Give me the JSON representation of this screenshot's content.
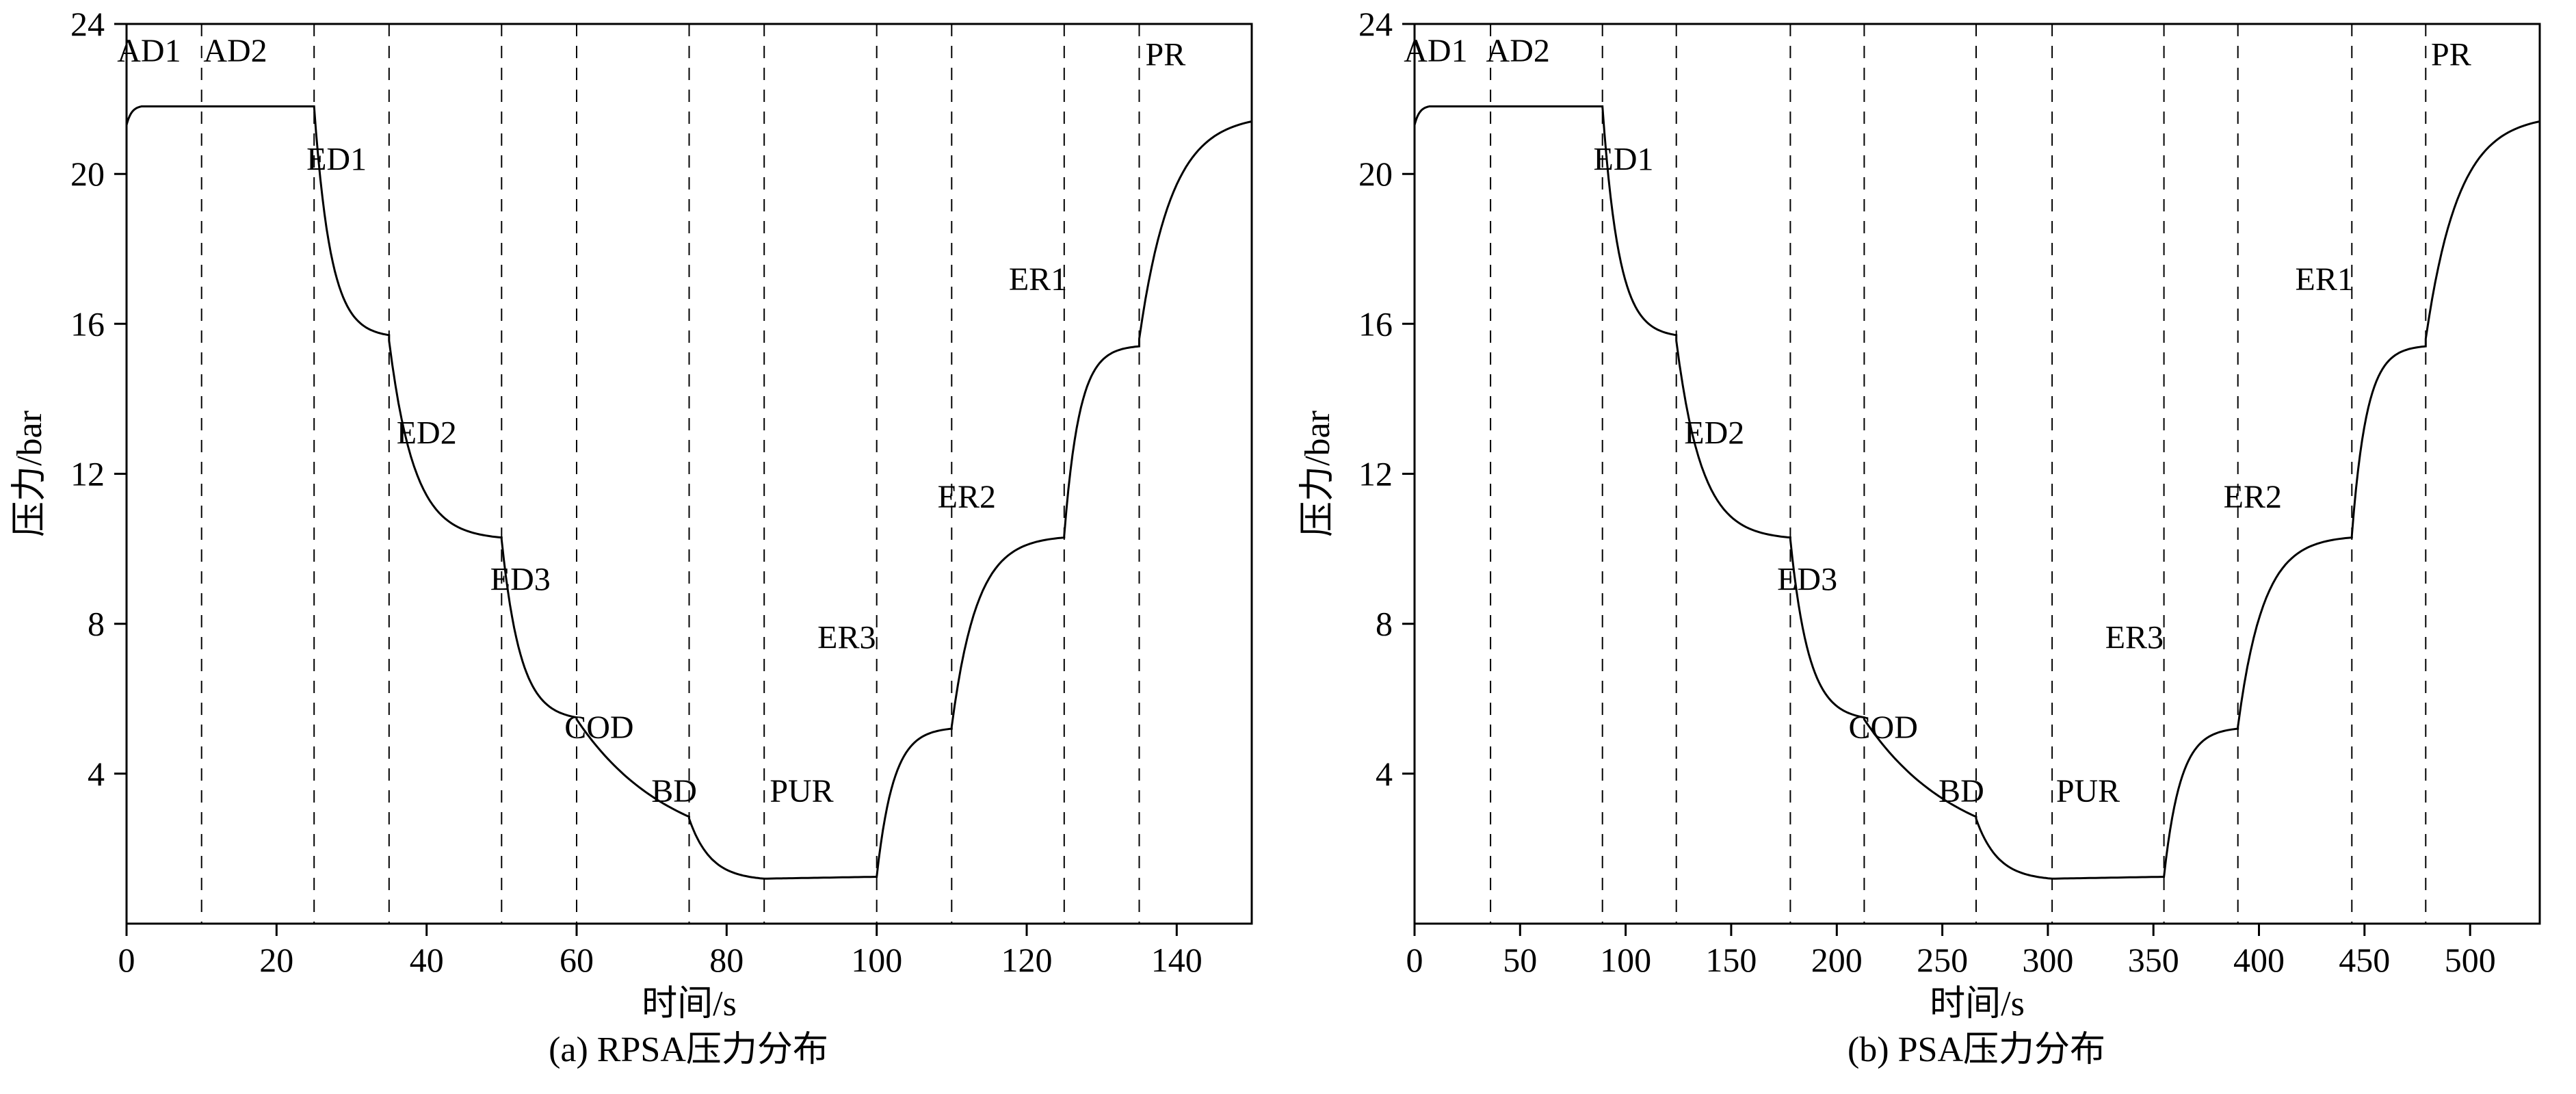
{
  "figure": {
    "background": "#ffffff",
    "line_color": "#000000"
  },
  "chart_data": [
    {
      "type": "line",
      "title": "(a) RPSA压力分布",
      "xlabel": "时间/s",
      "ylabel": "压力/bar",
      "xlim": [
        0,
        150
      ],
      "ylim": [
        0,
        24
      ],
      "xticks": [
        0,
        20,
        40,
        60,
        80,
        100,
        120,
        140
      ],
      "yticks": [
        4,
        8,
        12,
        16,
        20,
        24
      ],
      "line_color": "#000000",
      "grid": false,
      "phase_lines": [
        10,
        25,
        35,
        50,
        60,
        75,
        85,
        100,
        110,
        125,
        135
      ],
      "phase_labels": [
        {
          "text": "AD1",
          "x": 3,
          "y": 23.0
        },
        {
          "text": "AD2",
          "x": 14.5,
          "y": 23.0
        },
        {
          "text": "ED1",
          "x": 28,
          "y": 20.1
        },
        {
          "text": "ED2",
          "x": 40,
          "y": 12.8
        },
        {
          "text": "ED3",
          "x": 52.5,
          "y": 8.9
        },
        {
          "text": "COD",
          "x": 63,
          "y": 4.95
        },
        {
          "text": "BD",
          "x": 73,
          "y": 3.25
        },
        {
          "text": "PUR",
          "x": 90,
          "y": 3.25
        },
        {
          "text": "ER3",
          "x": 96,
          "y": 7.35
        },
        {
          "text": "ER2",
          "x": 112,
          "y": 11.1
        },
        {
          "text": "ER1",
          "x": 121.5,
          "y": 16.9
        },
        {
          "text": "PR",
          "x": 138.5,
          "y": 22.9
        }
      ],
      "segments": [
        {
          "t0": 0,
          "t1": 2,
          "p0": 21.3,
          "p1": 21.8,
          "k": 3
        },
        {
          "t0": 2,
          "t1": 25,
          "p0": 21.8,
          "p1": 21.8,
          "k": 0
        },
        {
          "t0": 25,
          "t1": 35,
          "p0": 21.8,
          "p1": 15.7,
          "k": 4.5
        },
        {
          "t0": 35,
          "t1": 50,
          "p0": 15.55,
          "p1": 10.3,
          "k": 4.5
        },
        {
          "t0": 50,
          "t1": 60,
          "p0": 10.25,
          "p1": 5.5,
          "k": 4
        },
        {
          "t0": 60,
          "t1": 75,
          "p0": 5.45,
          "p1": 2.85,
          "k": 1.2
        },
        {
          "t0": 75,
          "t1": 85,
          "p0": 2.8,
          "p1": 1.2,
          "k": 3.5
        },
        {
          "t0": 85,
          "t1": 100,
          "p0": 1.2,
          "p1": 1.25,
          "k": 0
        },
        {
          "t0": 100,
          "t1": 110,
          "p0": 1.25,
          "p1": 5.2,
          "k": 4.5
        },
        {
          "t0": 110,
          "t1": 125,
          "p0": 5.25,
          "p1": 10.3,
          "k": 4.5
        },
        {
          "t0": 125,
          "t1": 135,
          "p0": 10.35,
          "p1": 15.4,
          "k": 5
        },
        {
          "t0": 135,
          "t1": 150,
          "p0": 15.6,
          "p1": 21.4,
          "k": 3.5
        }
      ]
    },
    {
      "type": "line",
      "title": "(b) PSA压力分布",
      "xlabel": "时间/s",
      "ylabel": "压力/bar",
      "xlim": [
        0,
        533
      ],
      "ylim": [
        0,
        24
      ],
      "xticks": [
        0,
        50,
        100,
        150,
        200,
        250,
        300,
        350,
        400,
        450,
        500
      ],
      "yticks": [
        4,
        8,
        12,
        16,
        20,
        24
      ],
      "line_color": "#000000",
      "grid": false,
      "phase_lines": [
        36,
        89,
        124,
        178,
        213,
        266,
        302,
        355,
        390,
        444,
        479
      ],
      "phase_labels": [
        {
          "text": "AD1",
          "x": 10,
          "y": 23.0
        },
        {
          "text": "AD2",
          "x": 49,
          "y": 23.0
        },
        {
          "text": "ED1",
          "x": 99,
          "y": 20.1
        },
        {
          "text": "ED2",
          "x": 142,
          "y": 12.8
        },
        {
          "text": "ED3",
          "x": 186,
          "y": 8.9
        },
        {
          "text": "COD",
          "x": 222,
          "y": 4.95
        },
        {
          "text": "BD",
          "x": 259,
          "y": 3.25
        },
        {
          "text": "PUR",
          "x": 319,
          "y": 3.25
        },
        {
          "text": "ER3",
          "x": 341,
          "y": 7.35
        },
        {
          "text": "ER2",
          "x": 397,
          "y": 11.1
        },
        {
          "text": "ER1",
          "x": 431,
          "y": 16.9
        },
        {
          "text": "PR",
          "x": 491,
          "y": 22.9
        }
      ],
      "segments": [
        {
          "t0": 0,
          "t1": 7,
          "p0": 21.3,
          "p1": 21.8,
          "k": 3
        },
        {
          "t0": 7,
          "t1": 89,
          "p0": 21.8,
          "p1": 21.8,
          "k": 0
        },
        {
          "t0": 89,
          "t1": 124,
          "p0": 21.8,
          "p1": 15.7,
          "k": 4.5
        },
        {
          "t0": 124,
          "t1": 178,
          "p0": 15.55,
          "p1": 10.3,
          "k": 4.5
        },
        {
          "t0": 178,
          "t1": 213,
          "p0": 10.25,
          "p1": 5.5,
          "k": 4
        },
        {
          "t0": 213,
          "t1": 266,
          "p0": 5.45,
          "p1": 2.85,
          "k": 1.2
        },
        {
          "t0": 266,
          "t1": 302,
          "p0": 2.8,
          "p1": 1.2,
          "k": 3.5
        },
        {
          "t0": 302,
          "t1": 355,
          "p0": 1.2,
          "p1": 1.25,
          "k": 0
        },
        {
          "t0": 355,
          "t1": 390,
          "p0": 1.25,
          "p1": 5.2,
          "k": 4.5
        },
        {
          "t0": 390,
          "t1": 444,
          "p0": 5.25,
          "p1": 10.3,
          "k": 4.5
        },
        {
          "t0": 444,
          "t1": 479,
          "p0": 10.35,
          "p1": 15.4,
          "k": 5
        },
        {
          "t0": 479,
          "t1": 533,
          "p0": 15.6,
          "p1": 21.4,
          "k": 3.5
        }
      ]
    }
  ]
}
